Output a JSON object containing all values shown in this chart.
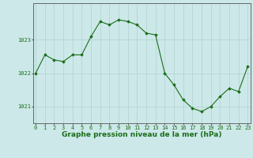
{
  "hours": [
    0,
    1,
    2,
    3,
    4,
    5,
    6,
    7,
    8,
    9,
    10,
    11,
    12,
    13,
    14,
    15,
    16,
    17,
    18,
    19,
    20,
    21,
    22,
    23
  ],
  "pressure": [
    1022.0,
    1022.55,
    1022.4,
    1022.35,
    1022.55,
    1022.55,
    1023.1,
    1023.55,
    1023.45,
    1023.6,
    1023.55,
    1023.45,
    1023.2,
    1023.15,
    1022.0,
    1021.65,
    1021.2,
    1020.95,
    1020.85,
    1021.0,
    1021.3,
    1021.55,
    1021.45,
    1022.2
  ],
  "line_color": "#1a6e1a",
  "marker": "D",
  "marker_size": 1.8,
  "bg_color": "#cce8e8",
  "grid_color": "#aacccc",
  "border_color": "#555555",
  "xlabel": "Graphe pression niveau de la mer (hPa)",
  "xlabel_color": "#1a6e1a",
  "xlabel_fontsize": 6.5,
  "tick_label_color": "#1a6e1a",
  "tick_fontsize": 5.0,
  "ylim": [
    1020.5,
    1024.1
  ],
  "yticks": [
    1021,
    1022,
    1023
  ],
  "fig_width": 3.2,
  "fig_height": 2.0,
  "dpi": 100
}
